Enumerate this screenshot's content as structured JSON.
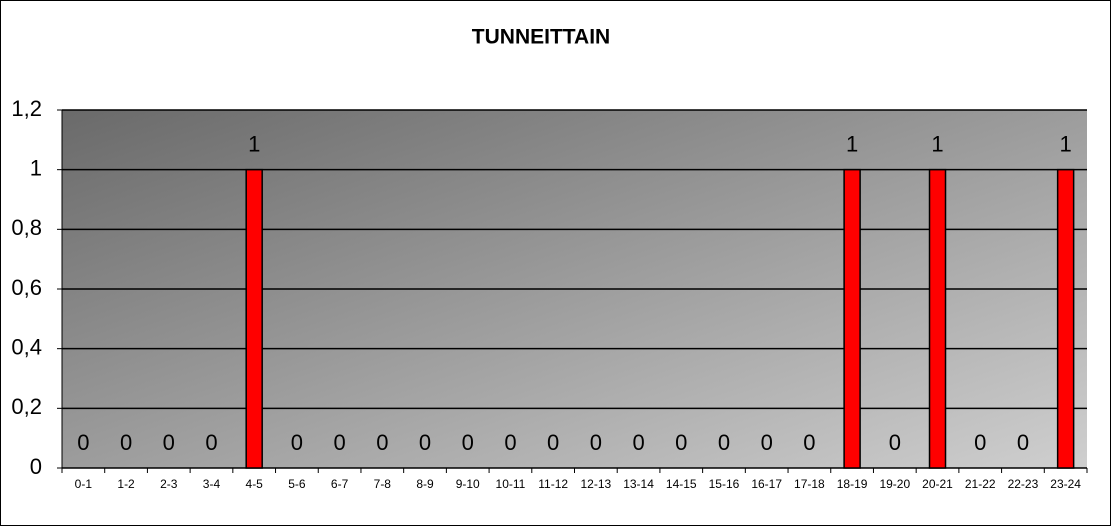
{
  "chart_data": {
    "type": "bar",
    "title": "TUNNEITTAIN",
    "categories": [
      "0-1",
      "1-2",
      "2-3",
      "3-4",
      "4-5",
      "5-6",
      "6-7",
      "7-8",
      "8-9",
      "9-10",
      "10-11",
      "11-12",
      "12-13",
      "13-14",
      "14-15",
      "15-16",
      "16-17",
      "17-18",
      "18-19",
      "19-20",
      "20-21",
      "21-22",
      "22-23",
      "23-24"
    ],
    "values": [
      0,
      0,
      0,
      0,
      1,
      0,
      0,
      0,
      0,
      0,
      0,
      0,
      0,
      0,
      0,
      0,
      0,
      0,
      1,
      0,
      1,
      0,
      0,
      1
    ],
    "color": "#ff0000",
    "ylim": [
      0,
      1.2
    ],
    "yticks": [
      0,
      {
        "value": 0.2,
        "label": "0,2"
      },
      {
        "value": 0.4,
        "label": "0,4"
      },
      {
        "value": 0.6,
        "label": "0,6"
      },
      {
        "value": 0.8,
        "label": "0,8"
      },
      1,
      {
        "value": 1.2,
        "label": "1,2"
      }
    ],
    "grid": true
  }
}
